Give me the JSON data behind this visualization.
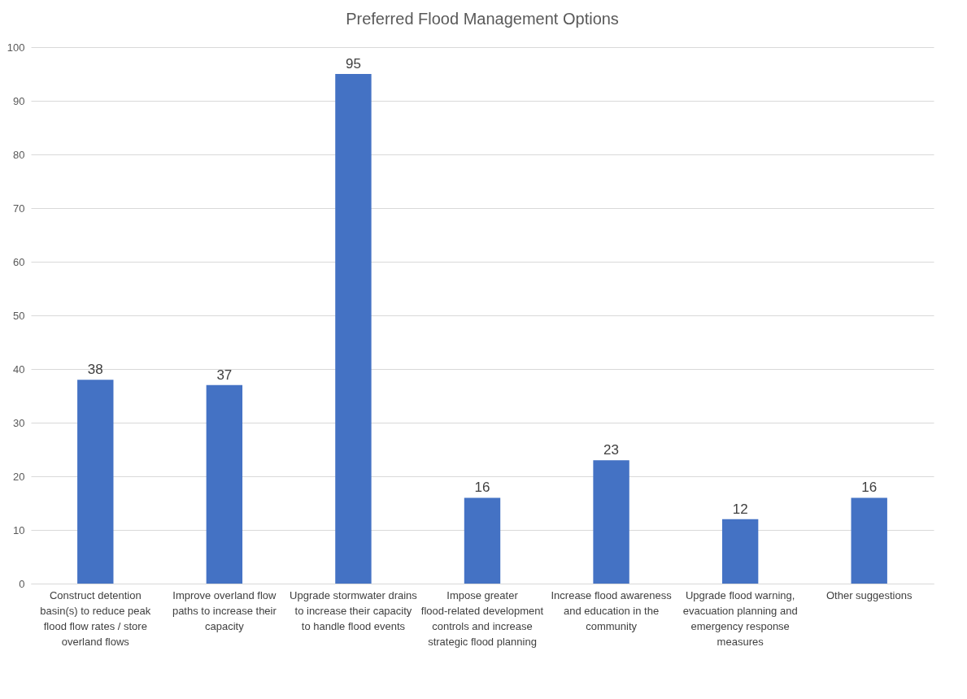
{
  "chart_data": {
    "type": "bar",
    "title": "Preferred Flood Management Options",
    "categories": [
      "Construct detention basin(s) to reduce peak flood flow rates / store overland flows",
      "Improve overland flow paths to increase their capacity",
      "Upgrade stormwater drains to increase their capacity to handle flood events",
      "Impose greater flood-related development controls and increase strategic flood planning",
      "Increase flood awareness and education in the community",
      "Upgrade flood warning, evacuation planning and emergency response measures",
      "Other suggestions"
    ],
    "values": [
      38,
      37,
      95,
      16,
      23,
      12,
      16
    ],
    "color": "#4472c4",
    "ylim": [
      0,
      100
    ],
    "yticks": [
      0,
      10,
      20,
      30,
      40,
      50,
      60,
      70,
      80,
      90,
      100
    ],
    "grid": "y",
    "data_labels": true
  }
}
